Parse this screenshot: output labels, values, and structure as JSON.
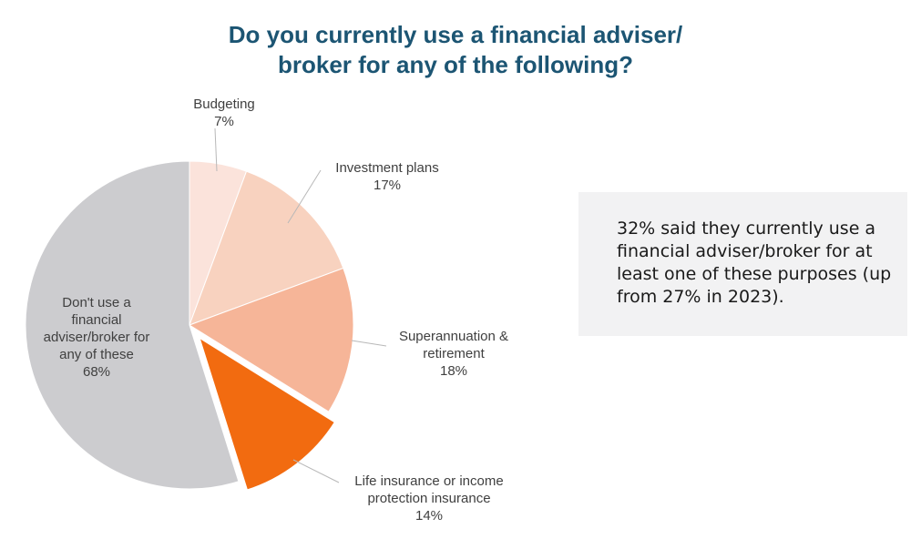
{
  "title_line1": "Do you currently use a financial adviser/",
  "title_line2": "broker for any of the following?",
  "note": "32% said they currently use a financial adviser/broker for at least one of these purposes (up from 27% in 2023).",
  "chart_data": {
    "type": "pie",
    "title": "Do you currently use a financial adviser/ broker for any of the following?",
    "slices": [
      {
        "label": [
          "Budgeting"
        ],
        "value": 7,
        "value_label": "7%",
        "color": "#fbe3db"
      },
      {
        "label": [
          "Investment plans"
        ],
        "value": 17,
        "value_label": "17%",
        "color": "#f8d2bf"
      },
      {
        "label": [
          "Superannuation &",
          "retirement"
        ],
        "value": 18,
        "value_label": "18%",
        "color": "#f6b598"
      },
      {
        "label": [
          "Life insurance or income",
          "protection insurance"
        ],
        "value": 14,
        "value_label": "14%",
        "color": "#f26b10",
        "exploded": true
      },
      {
        "label": [
          "Don't use a",
          "financial",
          "adviser/broker for",
          "any of these"
        ],
        "value": 68,
        "value_label": "68%",
        "color": "#cccccf"
      }
    ]
  }
}
